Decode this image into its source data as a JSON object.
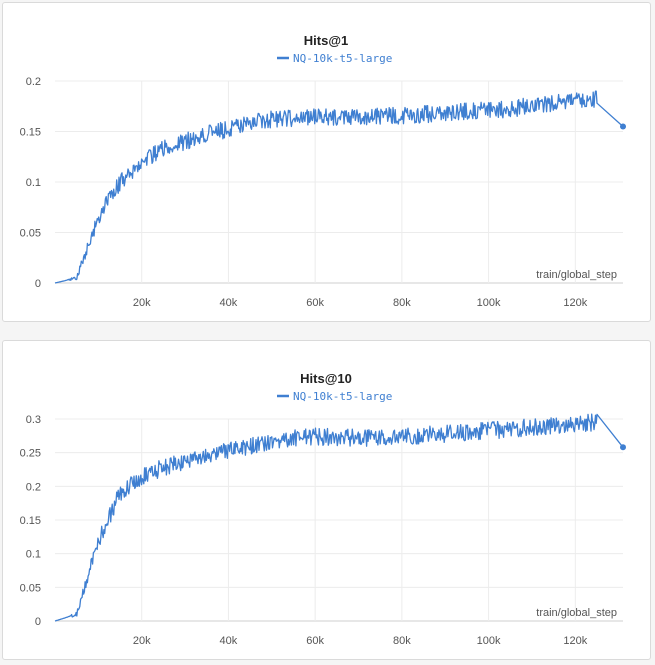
{
  "chart_data": [
    {
      "type": "line",
      "title": "Hits@1",
      "xlabel": "train/global_step",
      "ylabel": "",
      "xlim": [
        0,
        131000
      ],
      "ylim": [
        0,
        0.2
      ],
      "x_ticks": [
        20000,
        40000,
        60000,
        80000,
        100000,
        120000
      ],
      "x_tick_labels": [
        "20k",
        "40k",
        "60k",
        "80k",
        "100k",
        "120k"
      ],
      "y_ticks": [
        0,
        0.05,
        0.1,
        0.15,
        0.2
      ],
      "y_tick_labels": [
        "0",
        "0.05",
        "0.1",
        "0.15",
        "0.2"
      ],
      "grid": true,
      "legend_position": "top-center",
      "series": [
        {
          "name": "NQ-10k-t5-large",
          "color": "#3f7fd1",
          "x": [
            0,
            5000,
            10000,
            15000,
            20000,
            25000,
            30000,
            35000,
            40000,
            45000,
            50000,
            55000,
            60000,
            65000,
            70000,
            75000,
            80000,
            85000,
            90000,
            95000,
            100000,
            105000,
            110000,
            115000,
            120000,
            125000,
            131000
          ],
          "y": [
            0,
            0.005,
            0.065,
            0.1,
            0.12,
            0.133,
            0.14,
            0.148,
            0.152,
            0.158,
            0.162,
            0.163,
            0.165,
            0.163,
            0.164,
            0.165,
            0.166,
            0.167,
            0.168,
            0.17,
            0.172,
            0.172,
            0.176,
            0.178,
            0.181,
            0.182,
            0.155
          ]
        }
      ]
    },
    {
      "type": "line",
      "title": "Hits@10",
      "xlabel": "train/global_step",
      "ylabel": "",
      "xlim": [
        0,
        131000
      ],
      "ylim": [
        0,
        0.3
      ],
      "x_ticks": [
        20000,
        40000,
        60000,
        80000,
        100000,
        120000
      ],
      "x_tick_labels": [
        "20k",
        "40k",
        "60k",
        "80k",
        "100k",
        "120k"
      ],
      "y_ticks": [
        0,
        0.05,
        0.1,
        0.15,
        0.2,
        0.25,
        0.3
      ],
      "y_tick_labels": [
        "0",
        "0.05",
        "0.1",
        "0.15",
        "0.2",
        "0.25",
        "0.3"
      ],
      "grid": true,
      "legend_position": "top-center",
      "series": [
        {
          "name": "NQ-10k-t5-large",
          "color": "#3f7fd1",
          "x": [
            0,
            5000,
            10000,
            15000,
            20000,
            25000,
            30000,
            35000,
            40000,
            45000,
            50000,
            55000,
            60000,
            65000,
            70000,
            75000,
            80000,
            85000,
            90000,
            95000,
            100000,
            105000,
            110000,
            115000,
            120000,
            125000,
            131000
          ],
          "y": [
            0,
            0.01,
            0.12,
            0.19,
            0.215,
            0.228,
            0.238,
            0.245,
            0.252,
            0.26,
            0.268,
            0.272,
            0.274,
            0.273,
            0.272,
            0.272,
            0.274,
            0.276,
            0.278,
            0.28,
            0.283,
            0.285,
            0.288,
            0.29,
            0.293,
            0.295,
            0.258
          ]
        }
      ]
    }
  ]
}
